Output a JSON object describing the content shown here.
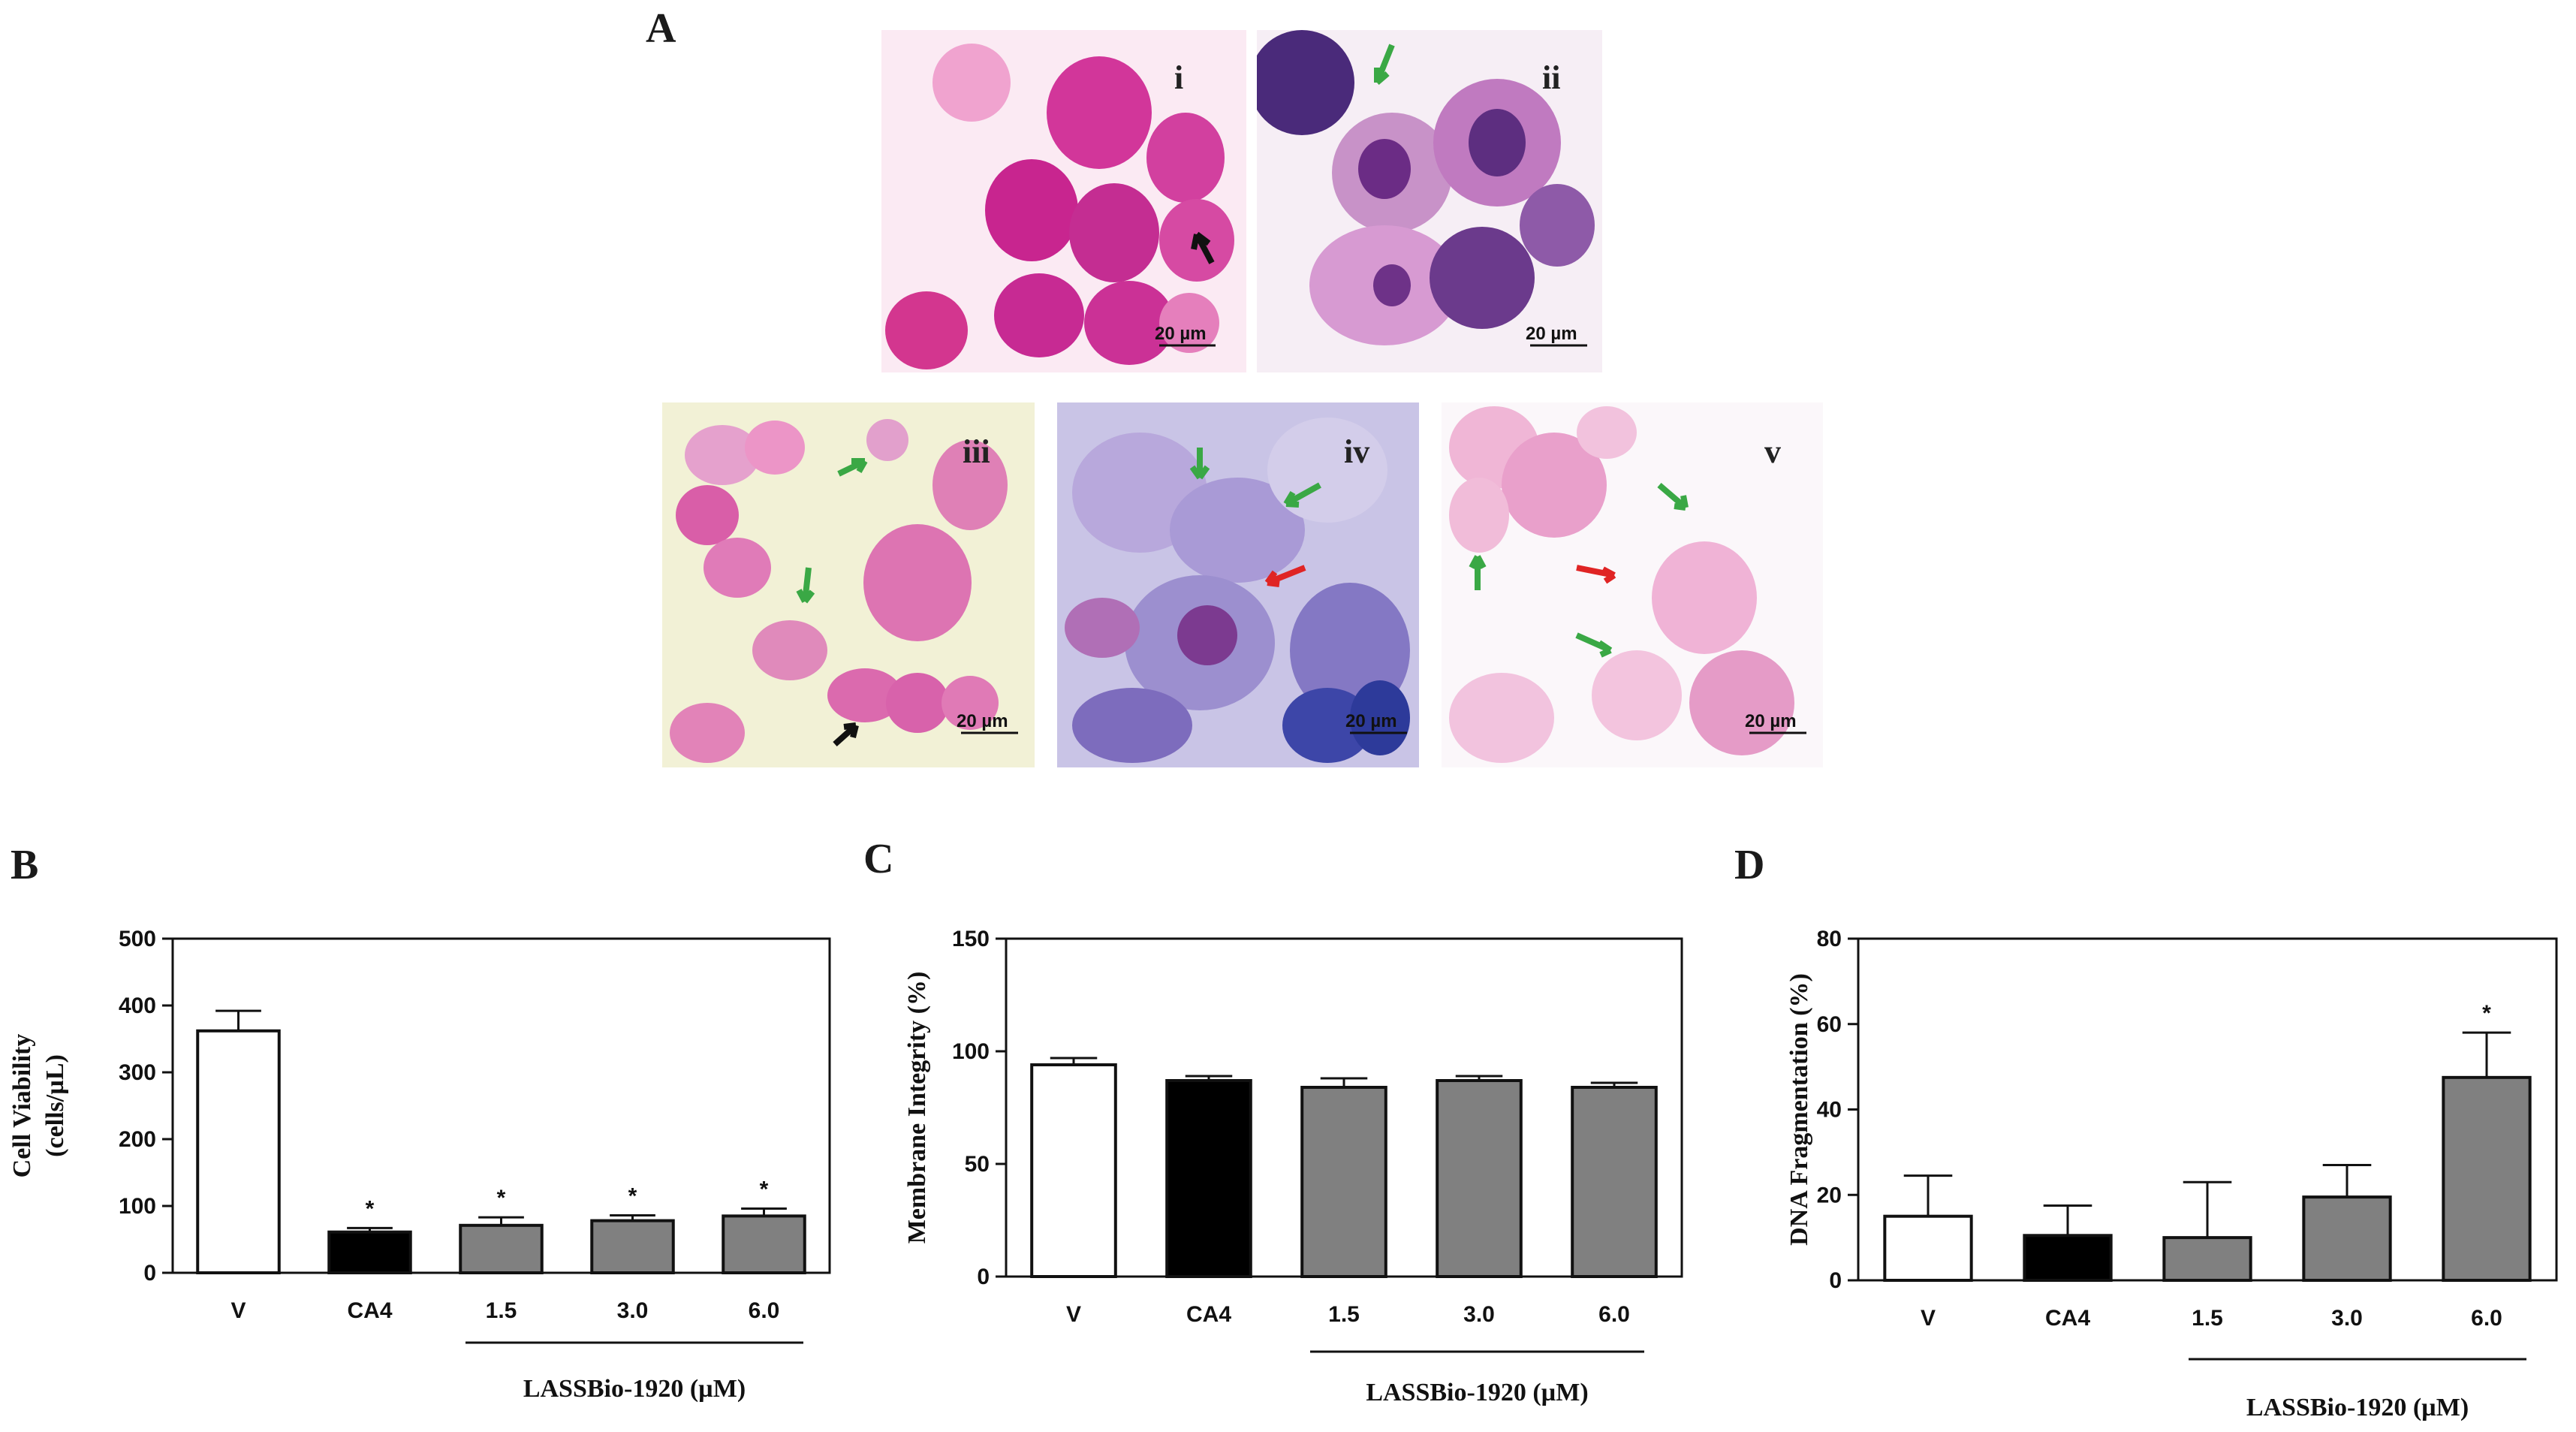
{
  "figure": {
    "panel_letters": {
      "A": "A",
      "B": "B",
      "C": "C",
      "D": "D"
    },
    "micrographs": [
      {
        "label": "i",
        "scale_bar": "20 µm",
        "tone": "#e070b8"
      },
      {
        "label": "ii",
        "scale_bar": "20 µm",
        "tone": "#b07ac0"
      },
      {
        "label": "iii",
        "scale_bar": "20 µm",
        "tone": "#e39ac8"
      },
      {
        "label": "iv",
        "scale_bar": "20 µm",
        "tone": "#9a8fcf"
      },
      {
        "label": "v",
        "scale_bar": "20 µm",
        "tone": "#efb0d2"
      }
    ],
    "colors": {
      "arrow_black": "#111111",
      "arrow_green": "#3aa845",
      "arrow_red": "#e02424",
      "bar_control": "#ffffff",
      "bar_ca4": "#000000",
      "bar_lassbio": "#808080"
    }
  },
  "chart_data": [
    {
      "type": "bar",
      "panel": "B",
      "categories": [
        "V",
        "CA4",
        "1.5",
        "3.0",
        "6.0"
      ],
      "values": [
        362,
        61,
        71,
        78,
        85
      ],
      "errors": [
        30,
        6,
        12,
        8,
        11
      ],
      "significant": [
        false,
        true,
        true,
        true,
        true
      ],
      "significance_marker": "*",
      "ylabel_line1": "Cell Viability",
      "ylabel_line2": "(cells/µL)",
      "ylim": [
        0,
        500
      ],
      "yticks": [
        "0",
        "100",
        "200",
        "300",
        "400",
        "500"
      ],
      "group_label": "LASSBio-1920 (µM)"
    },
    {
      "type": "bar",
      "panel": "C",
      "categories": [
        "V",
        "CA4",
        "1.5",
        "3.0",
        "6.0"
      ],
      "values": [
        94,
        87,
        84,
        87,
        84
      ],
      "errors": [
        3,
        2,
        4,
        2,
        2
      ],
      "significant": [
        false,
        false,
        false,
        false,
        false
      ],
      "significance_marker": "*",
      "ylabel_line1": "Membrane Integrity (%)",
      "ylabel_line2": "",
      "ylim": [
        0,
        150
      ],
      "yticks": [
        "0",
        "50",
        "100",
        "150"
      ],
      "group_label": "LASSBio-1920 (µM)"
    },
    {
      "type": "bar",
      "panel": "D",
      "categories": [
        "V",
        "CA4",
        "1.5",
        "3.0",
        "6.0"
      ],
      "values": [
        15,
        10.5,
        10,
        19.5,
        47.5
      ],
      "errors": [
        9.5,
        7,
        13,
        7.5,
        10.5
      ],
      "significant": [
        false,
        false,
        false,
        false,
        true
      ],
      "significance_marker": "*",
      "ylabel_line1": "DNA Fragmentation (%)",
      "ylabel_line2": "",
      "ylim": [
        0,
        80
      ],
      "yticks": [
        "0",
        "20",
        "40",
        "60",
        "80"
      ],
      "group_label": "LASSBio-1920 (µM)"
    }
  ]
}
